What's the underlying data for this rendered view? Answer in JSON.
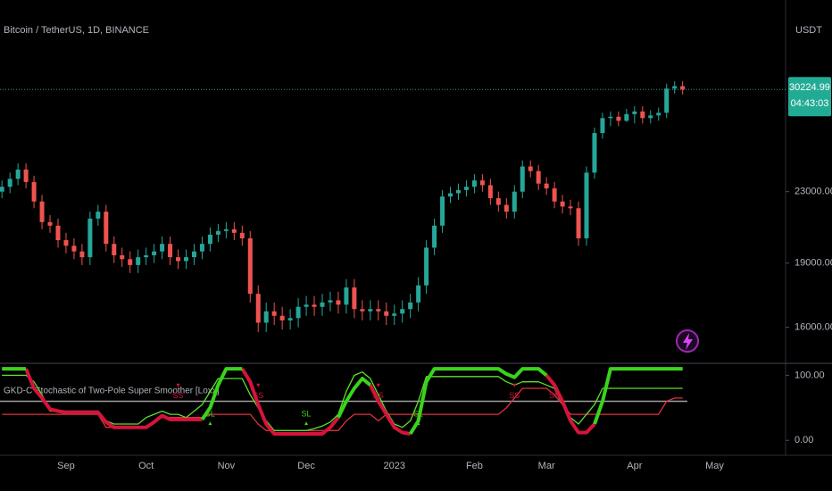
{
  "chart_data": [
    {
      "type": "candlestick",
      "title": "Bitcoin / TetherUS, 1D, BINANCE",
      "currency": "USDT",
      "categories": [
        null,
        null,
        null,
        null,
        null,
        null,
        null,
        null,
        "Sep",
        null,
        null,
        null,
        null,
        null,
        null,
        null,
        null,
        null,
        "Oct",
        null,
        null,
        null,
        null,
        null,
        null,
        null,
        null,
        null,
        "Nov",
        null,
        null,
        null,
        null,
        null,
        null,
        null,
        null,
        null,
        "Dec",
        null,
        null,
        null,
        null,
        null,
        null,
        null,
        null,
        null,
        null,
        "2023",
        null,
        null,
        null,
        null,
        null,
        null,
        null,
        null,
        null,
        "Feb",
        null,
        null,
        null,
        null,
        null,
        null,
        null,
        null,
        "Mar",
        null,
        null,
        null,
        null,
        null,
        null,
        null,
        null,
        null,
        null,
        "Apr",
        null,
        null,
        null,
        null,
        null,
        null,
        null,
        null,
        null,
        "May"
      ],
      "open": [
        23000,
        23300,
        23800,
        24400,
        23600,
        22400,
        21200,
        21000,
        20200,
        19900,
        19600,
        19300,
        21400,
        21800,
        20000,
        19400,
        19200,
        18900,
        19300,
        19400,
        19600,
        20000,
        19300,
        19100,
        19300,
        19600,
        20000,
        20500,
        20700,
        20800,
        20600,
        20300,
        17500,
        16200,
        16700,
        16500,
        16300,
        16400,
        16900,
        17000,
        16900,
        17100,
        17200,
        17000,
        17800,
        16800,
        16700,
        16800,
        16700,
        16500,
        16600,
        16800,
        17100,
        17900,
        19800,
        21000,
        22700,
        22900,
        23100,
        23300,
        23700,
        23400,
        22600,
        22200,
        21800,
        23000,
        24600,
        24300,
        23500,
        23200,
        22400,
        22100,
        22000,
        20300,
        24200,
        26900,
        28000,
        28100,
        27800,
        28300,
        28500,
        28000,
        28200,
        28400,
        30300,
        30500,
        null,
        null,
        null,
        null
      ],
      "high": [
        23700,
        24200,
        24800,
        24800,
        24000,
        22800,
        21600,
        21400,
        20600,
        20300,
        20000,
        21800,
        22200,
        22200,
        20400,
        19800,
        19600,
        19700,
        19800,
        20000,
        20400,
        20400,
        19700,
        19700,
        20000,
        20400,
        20900,
        21100,
        21200,
        21200,
        21000,
        20700,
        17900,
        17100,
        17100,
        16900,
        16800,
        17300,
        17400,
        17400,
        17500,
        17600,
        17600,
        18200,
        18200,
        17200,
        17200,
        17200,
        17100,
        17000,
        17200,
        17500,
        18300,
        20200,
        21400,
        23100,
        23300,
        23500,
        23700,
        24100,
        24100,
        23800,
        23000,
        22600,
        23400,
        25000,
        25000,
        24700,
        23900,
        23600,
        22800,
        22500,
        22400,
        24600,
        27300,
        28400,
        28500,
        28500,
        28700,
        28900,
        28900,
        28600,
        28800,
        30700,
        30900,
        30900,
        null,
        null,
        null,
        null
      ],
      "low": [
        22600,
        22900,
        23400,
        23200,
        22000,
        20800,
        20600,
        19800,
        19500,
        19200,
        18900,
        18900,
        21000,
        19600,
        19000,
        18800,
        18500,
        18500,
        18900,
        19000,
        19200,
        18900,
        18700,
        18700,
        18900,
        19200,
        19600,
        20100,
        20300,
        20200,
        19900,
        17100,
        15800,
        15800,
        16100,
        15900,
        15900,
        16000,
        16500,
        16500,
        16500,
        16700,
        16600,
        16600,
        16400,
        16300,
        16300,
        16300,
        16100,
        16100,
        16200,
        16400,
        16700,
        17500,
        19400,
        20600,
        22300,
        22500,
        22700,
        22900,
        23000,
        22200,
        21800,
        21400,
        21400,
        22600,
        23900,
        23100,
        22800,
        22000,
        21700,
        21600,
        19900,
        19900,
        23800,
        26500,
        27400,
        27400,
        27700,
        27600,
        27600,
        27600,
        27800,
        28000,
        29900,
        29825,
        null,
        null,
        null,
        null
      ],
      "close": [
        23300,
        23800,
        24400,
        23600,
        22400,
        21200,
        21000,
        20200,
        19900,
        19600,
        19300,
        21400,
        21800,
        20000,
        19400,
        19200,
        18900,
        19300,
        19400,
        19600,
        20000,
        19300,
        19100,
        19300,
        19600,
        20000,
        20500,
        20700,
        20800,
        20600,
        20300,
        17500,
        16200,
        16700,
        16500,
        16300,
        16400,
        16900,
        17000,
        16900,
        17100,
        17200,
        17000,
        17800,
        16800,
        16700,
        16800,
        16700,
        16500,
        16600,
        16800,
        17100,
        17900,
        19800,
        21000,
        22700,
        22900,
        23100,
        23300,
        23700,
        23400,
        22600,
        22200,
        21800,
        23000,
        24600,
        24300,
        23500,
        23200,
        22400,
        22100,
        22000,
        20300,
        24200,
        26900,
        28000,
        28100,
        27800,
        28300,
        28500,
        28000,
        28200,
        28400,
        30300,
        30500,
        30225,
        null,
        null,
        null,
        null
      ],
      "up_color": "#26a69a",
      "down_color": "#ef5350",
      "log_scale": true,
      "ylim": [
        14600,
        38400
      ],
      "yticks": [
        {
          "value": 16000,
          "label": "16000.00"
        },
        {
          "value": 19000,
          "label": "19000.00"
        },
        {
          "value": 23000,
          "label": "23000.00"
        }
      ],
      "last_price": {
        "value": 30224.99,
        "label": "30224.99"
      },
      "countdown": "04:43:03",
      "last_price_color": "#22ab94"
    },
    {
      "type": "line",
      "title": "GKD-C Stochastic of Two-Pole Super Smoother [Loxx]",
      "ylim": [
        -23,
        117
      ],
      "yticks": [
        {
          "value": 100,
          "label": "100.00"
        },
        {
          "value": 0,
          "label": "0.00"
        }
      ],
      "level": 60,
      "level_color": "#9e9e9e",
      "series": [
        {
          "color": "#39d41c",
          "line_width": 4,
          "values": [
            110,
            110,
            110,
            110,
            null,
            null,
            null,
            null,
            null,
            null,
            null,
            null,
            null,
            null,
            null,
            null,
            null,
            null,
            null,
            null,
            null,
            null,
            null,
            null,
            null,
            32,
            50,
            85,
            110,
            110,
            110,
            null,
            null,
            null,
            null,
            null,
            null,
            null,
            null,
            null,
            null,
            null,
            35,
            60,
            80,
            95,
            85,
            null,
            null,
            null,
            null,
            10,
            30,
            90,
            110,
            110,
            110,
            110,
            110,
            110,
            110,
            110,
            110,
            102,
            97,
            110,
            110,
            110,
            100,
            null,
            null,
            null,
            null,
            null,
            25,
            60,
            110,
            110,
            110,
            110,
            110,
            110,
            110,
            110,
            110,
            110,
            null,
            null,
            null,
            null
          ]
        },
        {
          "color": "#d6133c",
          "line_width": 4,
          "values": [
            null,
            null,
            null,
            110,
            80,
            65,
            48,
            45,
            43,
            43,
            43,
            43,
            43,
            28,
            20,
            20,
            20,
            20,
            20,
            28,
            38,
            32,
            32,
            32,
            32,
            32,
            null,
            null,
            null,
            null,
            110,
            90,
            55,
            25,
            10,
            10,
            10,
            10,
            10,
            10,
            10,
            20,
            35,
            null,
            null,
            null,
            85,
            60,
            40,
            20,
            12,
            10,
            null,
            null,
            null,
            null,
            null,
            null,
            null,
            null,
            null,
            null,
            null,
            null,
            null,
            null,
            null,
            null,
            100,
            85,
            60,
            30,
            12,
            12,
            25,
            null,
            null,
            null,
            null,
            null,
            null,
            null,
            null,
            null,
            null,
            null,
            null,
            null,
            null,
            null
          ]
        },
        {
          "color": "#5ee02a",
          "line_width": 1.3,
          "values": [
            100,
            100,
            100,
            100,
            90,
            70,
            45,
            45,
            45,
            45,
            45,
            45,
            45,
            30,
            25,
            25,
            25,
            25,
            35,
            40,
            45,
            40,
            40,
            35,
            45,
            55,
            75,
            95,
            95,
            95,
            95,
            70,
            50,
            30,
            15,
            15,
            15,
            15,
            15,
            18,
            22,
            28,
            40,
            75,
            100,
            105,
            95,
            70,
            45,
            25,
            20,
            30,
            60,
            98,
            98,
            98,
            98,
            98,
            98,
            98,
            98,
            98,
            98,
            90,
            85,
            90,
            90,
            90,
            85,
            80,
            55,
            35,
            25,
            40,
            55,
            80,
            80,
            80,
            80,
            80,
            80,
            80,
            80,
            80,
            80,
            80,
            null,
            null,
            null,
            null
          ]
        },
        {
          "color": "#e0303f",
          "line_width": 1.3,
          "values": [
            40,
            40,
            40,
            40,
            40,
            40,
            40,
            40,
            40,
            40,
            40,
            40,
            40,
            20,
            20,
            20,
            20,
            20,
            20,
            30,
            35,
            35,
            35,
            35,
            35,
            35,
            40,
            40,
            40,
            40,
            40,
            40,
            25,
            15,
            15,
            15,
            15,
            15,
            15,
            15,
            15,
            15,
            15,
            30,
            40,
            40,
            40,
            30,
            40,
            40,
            40,
            40,
            40,
            40,
            40,
            40,
            40,
            40,
            40,
            40,
            40,
            40,
            40,
            50,
            65,
            80,
            80,
            80,
            80,
            70,
            55,
            40,
            40,
            40,
            40,
            40,
            40,
            40,
            40,
            40,
            40,
            40,
            40,
            60,
            65,
            65,
            null,
            null,
            null,
            null
          ]
        }
      ],
      "annotations": [
        {
          "text": "SS",
          "index": 22,
          "value": 68,
          "color": "#d6133c"
        },
        {
          "text": "SL",
          "index": 26,
          "value": 40,
          "color": "#39d41c"
        },
        {
          "text": "SS",
          "index": 32,
          "value": 68,
          "color": "#d6133c"
        },
        {
          "text": "SL",
          "index": 38,
          "value": 40,
          "color": "#39d41c"
        },
        {
          "text": "SS",
          "index": 47,
          "value": 68,
          "color": "#d6133c"
        },
        {
          "text": "SL",
          "index": 52,
          "value": 40,
          "color": "#39d41c"
        },
        {
          "text": "SS",
          "index": 64,
          "value": 68,
          "color": "#d6133c"
        },
        {
          "text": "SS",
          "index": 69,
          "value": 68,
          "color": "#d6133c"
        }
      ]
    }
  ]
}
